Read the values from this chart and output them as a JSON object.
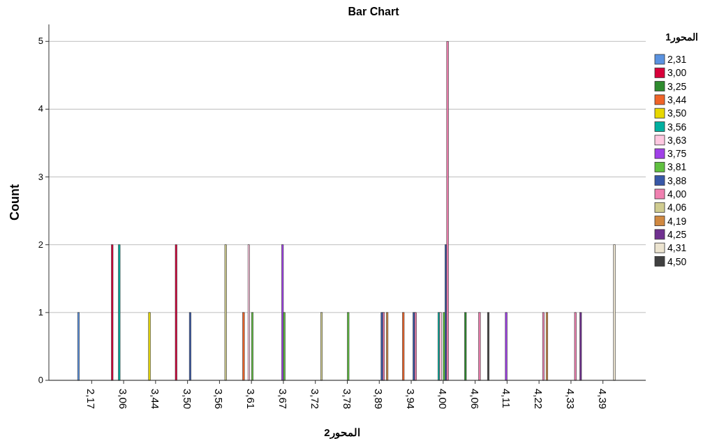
{
  "chart_data": {
    "type": "bar",
    "title": "Bar Chart",
    "xlabel": "المحور2",
    "ylabel": "Count",
    "legend_title": "المحور1",
    "categories": [
      "2,17",
      "3,06",
      "3,44",
      "3,50",
      "3,56",
      "3,61",
      "3,67",
      "3,72",
      "3,78",
      "3,89",
      "3,94",
      "4,00",
      "4,06",
      "4,11",
      "4,22",
      "4,33",
      "4,39"
    ],
    "series": [
      {
        "name": "2,31",
        "color": "#5a92e0",
        "values": [
          1,
          0,
          0,
          0,
          0,
          0,
          0,
          0,
          0,
          0,
          0,
          0,
          0,
          0,
          0,
          0,
          0
        ]
      },
      {
        "name": "3,00",
        "color": "#d8003a",
        "values": [
          0,
          2,
          0,
          2,
          0,
          0,
          0,
          0,
          0,
          0,
          0,
          0,
          0,
          0,
          0,
          0,
          0
        ]
      },
      {
        "name": "3,25",
        "color": "#2e8b2e",
        "values": [
          0,
          0,
          0,
          0,
          0,
          0,
          0,
          0,
          0,
          0,
          0,
          0,
          1,
          0,
          0,
          0,
          0
        ]
      },
      {
        "name": "3,44",
        "color": "#f06428",
        "values": [
          0,
          0,
          0,
          0,
          0,
          1,
          0,
          0,
          0,
          0,
          1,
          0,
          0,
          0,
          0,
          0,
          0
        ]
      },
      {
        "name": "3,50",
        "color": "#e8d800",
        "values": [
          0,
          0,
          1,
          0,
          0,
          0,
          0,
          0,
          0,
          0,
          0,
          0,
          0,
          0,
          0,
          0,
          0
        ]
      },
      {
        "name": "3,56",
        "color": "#00b0a0",
        "values": [
          0,
          2,
          0,
          0,
          0,
          0,
          0,
          0,
          0,
          0,
          0,
          1,
          0,
          0,
          0,
          0,
          0
        ]
      },
      {
        "name": "3,63",
        "color": "#ffc8e0",
        "values": [
          0,
          0,
          0,
          0,
          0,
          2,
          0,
          0,
          0,
          0,
          0,
          1,
          0,
          0,
          0,
          0,
          0
        ]
      },
      {
        "name": "3,75",
        "color": "#a040e8",
        "values": [
          0,
          0,
          0,
          0,
          0,
          0,
          2,
          0,
          0,
          0,
          0,
          0,
          0,
          1,
          0,
          0,
          0
        ]
      },
      {
        "name": "3,81",
        "color": "#60c040",
        "values": [
          0,
          0,
          0,
          0,
          0,
          1,
          1,
          0,
          1,
          0,
          0,
          1,
          0,
          0,
          0,
          0,
          0
        ]
      },
      {
        "name": "3,88",
        "color": "#3858a8",
        "values": [
          0,
          0,
          0,
          1,
          0,
          0,
          0,
          0,
          0,
          1,
          1,
          2,
          0,
          0,
          0,
          0,
          0
        ]
      },
      {
        "name": "4,00",
        "color": "#f080b0",
        "values": [
          0,
          0,
          0,
          0,
          0,
          0,
          0,
          0,
          0,
          1,
          1,
          5,
          1,
          0,
          1,
          1,
          0
        ]
      },
      {
        "name": "4,06",
        "color": "#d0cc90",
        "values": [
          0,
          0,
          0,
          0,
          2,
          0,
          0,
          1,
          0,
          0,
          0,
          0,
          0,
          0,
          0,
          0,
          0
        ]
      },
      {
        "name": "4,19",
        "color": "#d08840",
        "values": [
          0,
          0,
          0,
          0,
          0,
          0,
          0,
          0,
          0,
          1,
          0,
          0,
          0,
          0,
          1,
          0,
          0
        ]
      },
      {
        "name": "4,25",
        "color": "#703090",
        "values": [
          0,
          0,
          0,
          0,
          0,
          0,
          0,
          0,
          0,
          0,
          0,
          0,
          0,
          0,
          0,
          1,
          0
        ]
      },
      {
        "name": "4,31",
        "color": "#ece4d0",
        "values": [
          0,
          0,
          0,
          0,
          0,
          0,
          0,
          0,
          0,
          0,
          0,
          0,
          0,
          0,
          0,
          0,
          2
        ]
      },
      {
        "name": "4,50",
        "color": "#404040",
        "values": [
          0,
          0,
          0,
          0,
          0,
          0,
          0,
          0,
          0,
          0,
          0,
          0,
          1,
          0,
          0,
          0,
          0
        ]
      }
    ],
    "ylim": [
      0,
      5.25
    ],
    "yticks": [
      0,
      1,
      2,
      3,
      4,
      5
    ],
    "grid": "y",
    "legend": "right"
  }
}
